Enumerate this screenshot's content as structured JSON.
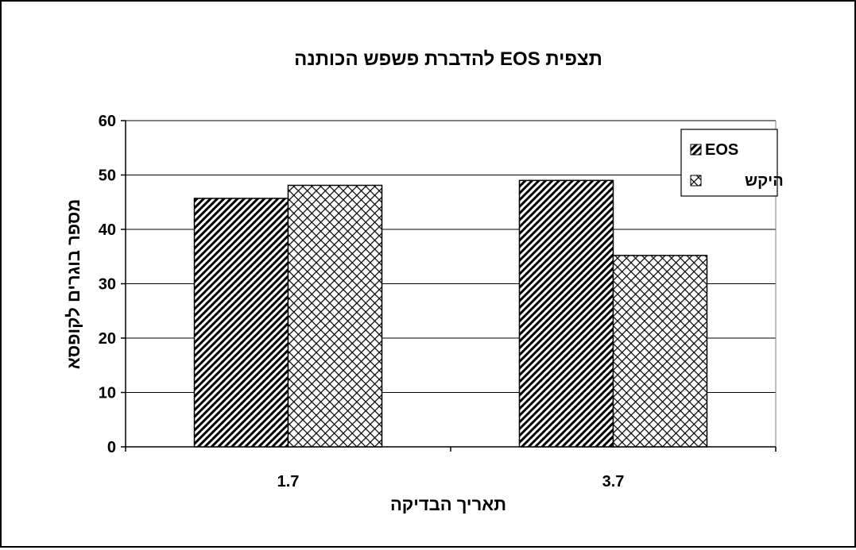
{
  "chart_data": {
    "type": "bar",
    "title": "תצפית EOS להדברת פשפש הכותנה",
    "xlabel": "תאריך הבדיקה",
    "ylabel": "מספר בוגרים לקופסא",
    "categories": [
      "1.7",
      "3.7"
    ],
    "ylim": [
      0,
      60
    ],
    "yticks": [
      0,
      10,
      20,
      30,
      40,
      50,
      60
    ],
    "grid": true,
    "legend": "top-right",
    "series": [
      {
        "name": "EOS",
        "values": [
          45.7,
          49
        ],
        "pattern": "diagonal-hatch"
      },
      {
        "name": "היקש",
        "values": [
          48.1,
          35.2
        ],
        "pattern": "cross-hatch"
      }
    ]
  }
}
